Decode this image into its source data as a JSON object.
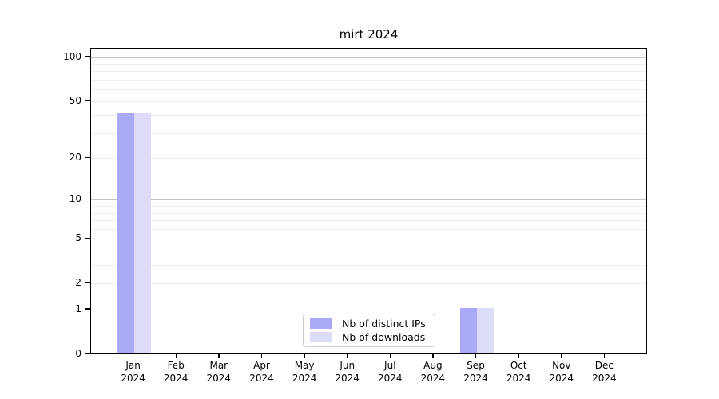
{
  "chart_data": {
    "type": "bar",
    "title": "mirt 2024",
    "categories": [
      {
        "month": "Jan",
        "year": "2024"
      },
      {
        "month": "Feb",
        "year": "2024"
      },
      {
        "month": "Mar",
        "year": "2024"
      },
      {
        "month": "Apr",
        "year": "2024"
      },
      {
        "month": "May",
        "year": "2024"
      },
      {
        "month": "Jun",
        "year": "2024"
      },
      {
        "month": "Jul",
        "year": "2024"
      },
      {
        "month": "Aug",
        "year": "2024"
      },
      {
        "month": "Sep",
        "year": "2024"
      },
      {
        "month": "Oct",
        "year": "2024"
      },
      {
        "month": "Nov",
        "year": "2024"
      },
      {
        "month": "Dec",
        "year": "2024"
      }
    ],
    "series": [
      {
        "name": "Nb of distinct IPs",
        "color": "#aaaaf8",
        "values": [
          40,
          0,
          0,
          0,
          0,
          0,
          0,
          0,
          1,
          0,
          0,
          0
        ]
      },
      {
        "name": "Nb of downloads",
        "color": "#dcdcf8",
        "values": [
          40,
          0,
          0,
          0,
          0,
          0,
          0,
          0,
          1,
          0,
          0,
          0
        ]
      }
    ],
    "xlabel": "",
    "ylabel": "",
    "y_axis": {
      "scale": "log1p",
      "ticks": [
        0,
        1,
        2,
        5,
        10,
        20,
        50,
        100
      ],
      "minor_gridlines": [
        2,
        3,
        4,
        5,
        6,
        7,
        8,
        9,
        20,
        30,
        40,
        50,
        60,
        70,
        80,
        90
      ],
      "major_gridlines": [
        1,
        10,
        100
      ],
      "ylim": [
        0,
        114
      ]
    },
    "legend": {
      "position": "lower-center",
      "entries": [
        "Nb of distinct IPs",
        "Nb of downloads"
      ]
    },
    "grid": true
  }
}
